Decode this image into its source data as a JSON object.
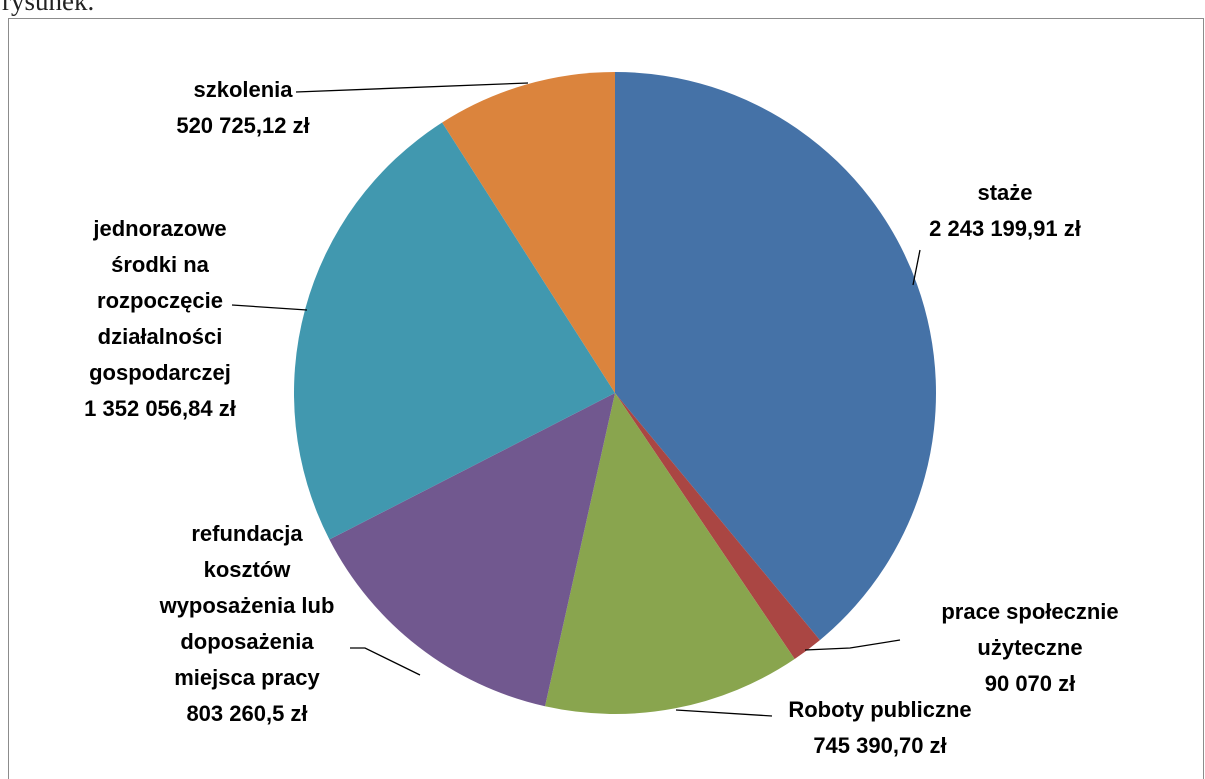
{
  "page_text": "rysunek.",
  "chart_data": {
    "type": "pie",
    "categories": [
      "staże",
      "prace społecznie\nużyteczne",
      "Roboty publiczne",
      "refundacja\nkosztów\nwyposażenia lub\ndoposażenia\nmiejsca pracy",
      "jednorazowe\nśrodki na\nrozpoczęcie\ndziałalności\ngospodarczej",
      "szkolenia"
    ],
    "values": [
      2243199.91,
      90070,
      745390.7,
      803260.5,
      1352056.84,
      520725.12
    ],
    "value_labels": [
      "2 243 199,91 zł",
      "90 070 zł",
      "745 390,70 zł",
      "803 260,5 zł",
      "1 352 056,84 zł",
      "520 725,12 zł"
    ],
    "colors": [
      "#4572a7",
      "#aa4643",
      "#89a54e",
      "#71588f",
      "#4198af",
      "#db843d"
    ]
  }
}
